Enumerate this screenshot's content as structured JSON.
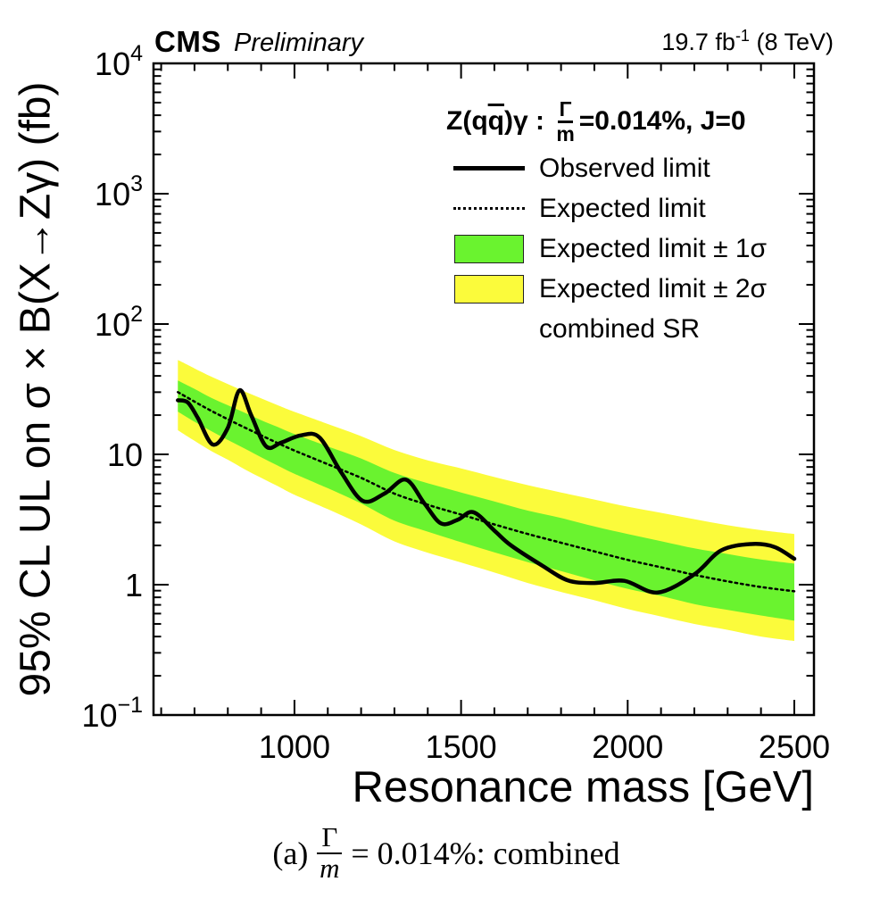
{
  "header": {
    "experiment": "CMS",
    "status": "Preliminary",
    "lumi_pre": "19.7 fb",
    "lumi_sup": "-1",
    "lumi_post": " (8 TeV)"
  },
  "legend": {
    "title": {
      "prefix1": "Z(q",
      "qbar": "q",
      "prefix2": ")γ : ",
      "frac_num": "Γ",
      "frac_den": "m",
      "suffix": "=0.014%, J=0"
    },
    "items": [
      {
        "marker": "line-solid",
        "label": "Observed limit"
      },
      {
        "marker": "line-dotted",
        "label": "Expected limit"
      },
      {
        "marker": "box-green",
        "label": "Expected limit ± 1σ"
      },
      {
        "marker": "box-yellow",
        "label": "Expected limit ± 2σ"
      },
      {
        "marker": "none",
        "label": "combined SR"
      }
    ]
  },
  "caption": {
    "index": "(a)",
    "frac_num": "Γ",
    "frac_den": "m",
    "suffix": "= 0.014%: combined"
  },
  "chart_data": {
    "type": "line",
    "title": "Z(qq̄)γ: Γ/m=0.014%, J=0",
    "xlabel": "Resonance mass [GeV]",
    "ylabel": "95% CL UL on σ × B(X→Zγ) (fb)",
    "grid": false,
    "legend_position": "top-right",
    "x_axis": {
      "scale": "linear",
      "range": [
        577,
        2559
      ],
      "major_ticks": [
        1000,
        1500,
        2000,
        2500
      ],
      "minor_tick_step": 100,
      "minor_tick_range": [
        600,
        2500
      ]
    },
    "y_axis": {
      "scale": "log",
      "range": [
        0.1,
        10000
      ],
      "decade_ticks": [
        -1,
        0,
        1,
        2,
        3,
        4
      ],
      "tick_labels": [
        "10⁻¹",
        "1",
        "10",
        "10²",
        "10³",
        "10⁴"
      ]
    },
    "series": [
      {
        "name": "Observed limit",
        "style": "solid",
        "color": "#000000",
        "width": 4.5,
        "x": [
          650,
          680,
          710,
          755,
          800,
          835,
          870,
          915,
          960,
          1020,
          1075,
          1140,
          1205,
          1270,
          1334,
          1390,
          1440,
          1490,
          1537,
          1600,
          1650,
          1740,
          1820,
          1900,
          1990,
          2090,
          2200,
          2280,
          2370,
          2440,
          2500
        ],
        "y": [
          26,
          25,
          19,
          11.9,
          16,
          31,
          20,
          11.5,
          12.3,
          14.0,
          13.5,
          7.3,
          4.4,
          5.0,
          6.4,
          4.2,
          2.95,
          3.15,
          3.6,
          2.6,
          2.0,
          1.42,
          1.08,
          1.03,
          1.07,
          0.87,
          1.2,
          1.83,
          2.05,
          1.95,
          1.58
        ]
      },
      {
        "name": "Expected limit",
        "style": "dotted",
        "color": "#000000",
        "width": 2.5,
        "x": [
          650,
          700,
          750,
          800,
          850,
          900,
          950,
          1000,
          1100,
          1200,
          1300,
          1400,
          1500,
          1600,
          1700,
          1800,
          1900,
          2000,
          2100,
          2200,
          2300,
          2400,
          2500
        ],
        "y": [
          30,
          25.4,
          21.6,
          18.6,
          16.1,
          14.0,
          12.2,
          10.7,
          8.4,
          6.6,
          5.0,
          4.1,
          3.45,
          2.9,
          2.45,
          2.1,
          1.8,
          1.55,
          1.36,
          1.19,
          1.06,
          0.96,
          0.89
        ]
      }
    ],
    "bands": [
      {
        "name": "Expected limit ± 2σ",
        "color": "#fbfb3b",
        "x": [
          650,
          700,
          750,
          800,
          850,
          900,
          950,
          1000,
          1100,
          1200,
          1300,
          1400,
          1500,
          1600,
          1700,
          1800,
          1900,
          2000,
          2100,
          2200,
          2300,
          2400,
          2500
        ],
        "y_up": [
          53,
          45.7,
          39.5,
          34.6,
          30.4,
          26.9,
          23.8,
          21.2,
          17.1,
          13.8,
          10.8,
          9.0,
          7.8,
          6.7,
          5.8,
          5.1,
          4.5,
          3.97,
          3.56,
          3.18,
          2.86,
          2.62,
          2.45
        ],
        "y_down": [
          15.3,
          12.7,
          10.6,
          9.1,
          7.7,
          6.6,
          5.7,
          4.9,
          3.8,
          2.9,
          2.15,
          1.76,
          1.48,
          1.24,
          1.03,
          0.88,
          0.76,
          0.65,
          0.57,
          0.5,
          0.45,
          0.4,
          0.37
        ]
      },
      {
        "name": "Expected limit ± 1σ",
        "color": "#6af32f",
        "x": [
          650,
          700,
          750,
          800,
          850,
          900,
          950,
          1000,
          1100,
          1200,
          1300,
          1400,
          1500,
          1600,
          1700,
          1800,
          1900,
          2000,
          2100,
          2200,
          2300,
          2400,
          2500
        ],
        "y_up": [
          36.9,
          31.8,
          27.2,
          23.8,
          20.9,
          18.3,
          16.2,
          14.3,
          11.5,
          9.3,
          7.2,
          6.0,
          5.1,
          4.35,
          3.7,
          3.25,
          2.8,
          2.45,
          2.16,
          1.9,
          1.72,
          1.56,
          1.45
        ],
        "y_down": [
          21.3,
          17.8,
          15.1,
          12.9,
          11.1,
          9.5,
          8.2,
          7.1,
          5.5,
          4.2,
          3.1,
          2.55,
          2.12,
          1.77,
          1.49,
          1.27,
          1.08,
          0.93,
          0.82,
          0.71,
          0.64,
          0.58,
          0.53
        ]
      }
    ]
  }
}
